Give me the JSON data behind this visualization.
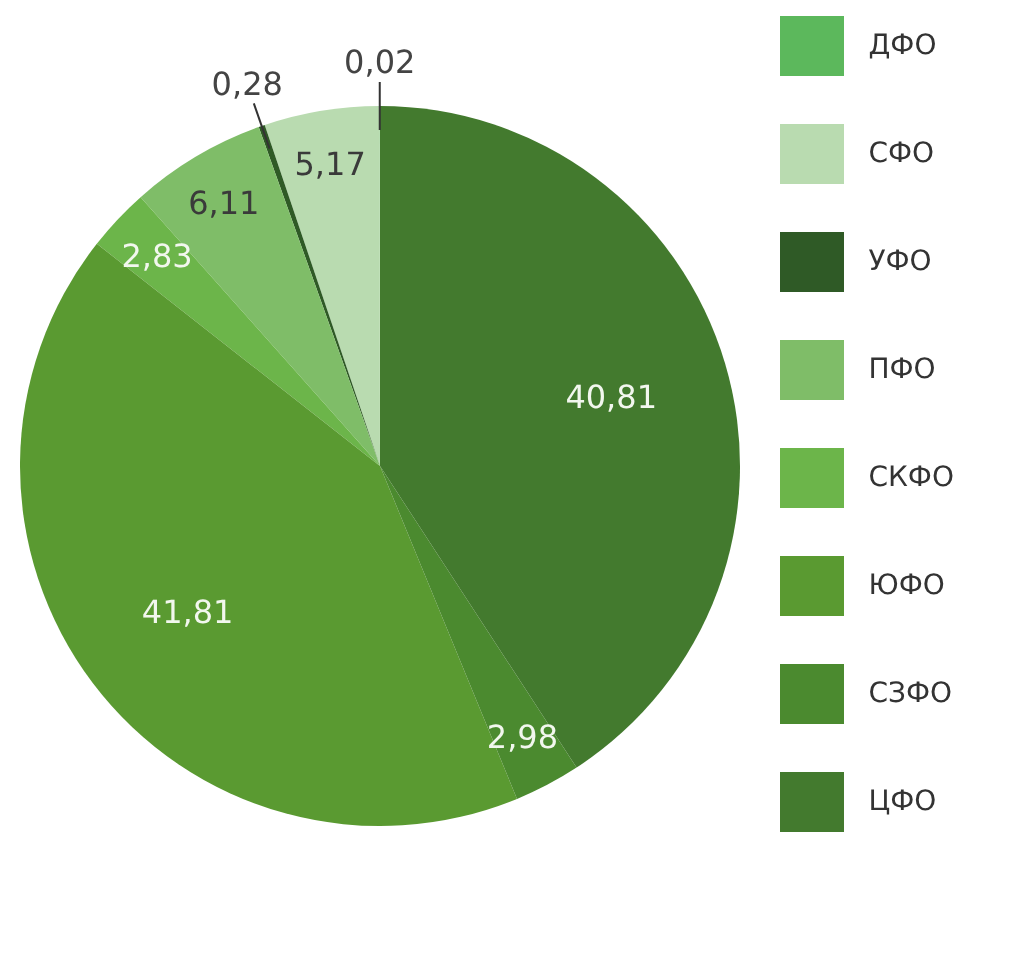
{
  "chart_data": {
    "type": "pie",
    "categories": [
      "ДФО",
      "СФО",
      "УФО",
      "ПФО",
      "СКФО",
      "ЮФО",
      "СЗФО",
      "ЦФО"
    ],
    "values": [
      0.02,
      5.17,
      0.28,
      6.11,
      2.83,
      41.81,
      2.98,
      40.81
    ],
    "value_labels": [
      "0,02",
      "5,17",
      "0,28",
      "6,11",
      "2,83",
      "41,81",
      "2,98",
      "40,81"
    ],
    "colors": [
      "#5cb85c",
      "#b9dbb0",
      "#2f5a26",
      "#7fbd68",
      "#6cb54a",
      "#5a9a31",
      "#4b8a2f",
      "#437a2e"
    ],
    "legend": "right"
  }
}
